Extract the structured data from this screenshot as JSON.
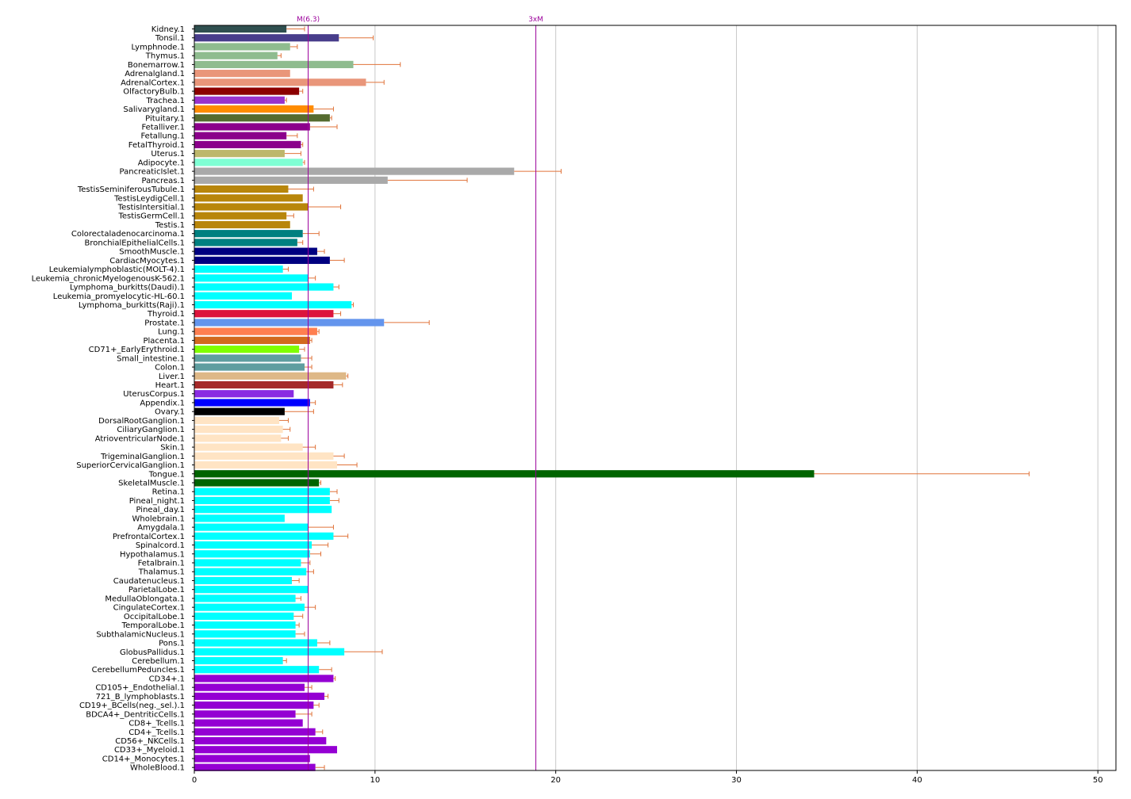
{
  "chart_data": {
    "type": "bar",
    "orientation": "horizontal",
    "title": "",
    "xlabel": "",
    "ylabel": "",
    "xlim": [
      0,
      51
    ],
    "xticks": [
      0,
      10,
      20,
      30,
      40,
      50
    ],
    "grid": "vertical lines at x ticks",
    "error_bar_color": "#e0733a",
    "reference_lines": [
      {
        "label": "M(6.3)",
        "value": 6.3,
        "color": "#9b009b"
      },
      {
        "label": "3xM",
        "value": 18.9,
        "color": "#9b009b"
      }
    ],
    "bars": [
      {
        "label": "Kidney.1",
        "value": 5.1,
        "err": 1.0,
        "color": "#2f4f4f"
      },
      {
        "label": "Tonsil.1",
        "value": 8.0,
        "err": 1.9,
        "color": "#483d8b"
      },
      {
        "label": "Lymphnode.1",
        "value": 5.3,
        "err": 0.4,
        "color": "#8fbc8f"
      },
      {
        "label": "Thymus.1",
        "value": 4.6,
        "err": 0.2,
        "color": "#8fbc8f"
      },
      {
        "label": "Bonemarrow.1",
        "value": 8.8,
        "err": 2.6,
        "color": "#8fbc8f"
      },
      {
        "label": "Adrenalgland.1",
        "value": 5.3,
        "err": 0.0,
        "color": "#e9967a"
      },
      {
        "label": "AdrenalCortex.1",
        "value": 9.5,
        "err": 1.0,
        "color": "#e9967a"
      },
      {
        "label": "OlfactoryBulb.1",
        "value": 5.8,
        "err": 0.2,
        "color": "#8b0000"
      },
      {
        "label": "Trachea.1",
        "value": 5.0,
        "err": 0.1,
        "color": "#9932cc"
      },
      {
        "label": "Salivarygland.1",
        "value": 6.6,
        "err": 1.1,
        "color": "#ff8c00"
      },
      {
        "label": "Pituitary.1",
        "value": 7.5,
        "err": 0.1,
        "color": "#556b2f"
      },
      {
        "label": "Fetalliver.1",
        "value": 6.4,
        "err": 1.5,
        "color": "#8b008b"
      },
      {
        "label": "Fetallung.1",
        "value": 5.1,
        "err": 0.6,
        "color": "#8b008b"
      },
      {
        "label": "FetalThyroid.1",
        "value": 5.9,
        "err": 0.1,
        "color": "#8b008b"
      },
      {
        "label": "Uterus.1",
        "value": 5.0,
        "err": 0.9,
        "color": "#bdb76b"
      },
      {
        "label": "Adipocyte.1",
        "value": 6.0,
        "err": 0.1,
        "color": "#7fffd4"
      },
      {
        "label": "PancreaticIslet.1",
        "value": 17.7,
        "err": 2.6,
        "color": "#a9a9a9"
      },
      {
        "label": "Pancreas.1",
        "value": 10.7,
        "err": 4.4,
        "color": "#a9a9a9"
      },
      {
        "label": "TestisSeminiferousTubule.1",
        "value": 5.2,
        "err": 1.4,
        "color": "#b8860b"
      },
      {
        "label": "TestisLeydigCell.1",
        "value": 6.0,
        "err": 0.0,
        "color": "#b8860b"
      },
      {
        "label": "TestisIntersitial.1",
        "value": 6.3,
        "err": 1.8,
        "color": "#b8860b"
      },
      {
        "label": "TestisGermCell.1",
        "value": 5.1,
        "err": 0.4,
        "color": "#b8860b"
      },
      {
        "label": "Testis.1",
        "value": 5.3,
        "err": 0.0,
        "color": "#b8860b"
      },
      {
        "label": "Colorectaladenocarcinoma.1",
        "value": 6.0,
        "err": 0.9,
        "color": "#008080"
      },
      {
        "label": "BronchialEpithelialCells.1",
        "value": 5.7,
        "err": 0.3,
        "color": "#008080"
      },
      {
        "label": "SmoothMuscle.1",
        "value": 6.8,
        "err": 0.4,
        "color": "#000080"
      },
      {
        "label": "CardiacMyocytes.1",
        "value": 7.5,
        "err": 0.8,
        "color": "#000080"
      },
      {
        "label": "Leukemialymphoblastic(MOLT-4).1",
        "value": 4.9,
        "err": 0.3,
        "color": "#00ffff"
      },
      {
        "label": "Leukemia_chronicMyelogenousK-562.1",
        "value": 6.3,
        "err": 0.4,
        "color": "#00ffff"
      },
      {
        "label": "Lymphoma_burkitts(Daudi).1",
        "value": 7.7,
        "err": 0.3,
        "color": "#00ffff"
      },
      {
        "label": "Leukemia_promyelocytic-HL-60.1",
        "value": 5.4,
        "err": 0.0,
        "color": "#00ffff"
      },
      {
        "label": "Lymphoma_burkitts(Raji).1",
        "value": 8.7,
        "err": 0.1,
        "color": "#00ffff"
      },
      {
        "label": "Thyroid.1",
        "value": 7.7,
        "err": 0.4,
        "color": "#dc143c"
      },
      {
        "label": "Prostate.1",
        "value": 10.5,
        "err": 2.5,
        "color": "#6495ed"
      },
      {
        "label": "Lung.1",
        "value": 6.8,
        "err": 0.1,
        "color": "#ff7f50"
      },
      {
        "label": "Placenta.1",
        "value": 6.4,
        "err": 0.1,
        "color": "#d2691e"
      },
      {
        "label": "CD71+_EarlyErythroid.1",
        "value": 5.8,
        "err": 0.3,
        "color": "#7fff00"
      },
      {
        "label": "Small_intestine.1",
        "value": 5.9,
        "err": 0.6,
        "color": "#5f9ea0"
      },
      {
        "label": "Colon.1",
        "value": 6.1,
        "err": 0.4,
        "color": "#5f9ea0"
      },
      {
        "label": "Liver.1",
        "value": 8.4,
        "err": 0.1,
        "color": "#deb887"
      },
      {
        "label": "Heart.1",
        "value": 7.7,
        "err": 0.5,
        "color": "#a52a2a"
      },
      {
        "label": "UterusCorpus.1",
        "value": 5.5,
        "err": 0.0,
        "color": "#8a2be2"
      },
      {
        "label": "Appendix.1",
        "value": 6.4,
        "err": 0.3,
        "color": "#0000ff"
      },
      {
        "label": "Ovary.1",
        "value": 5.0,
        "err": 1.6,
        "color": "#000000"
      },
      {
        "label": "DorsalRootGanglion.1",
        "value": 4.7,
        "err": 0.5,
        "color": "#ffe4c4"
      },
      {
        "label": "CiliaryGanglion.1",
        "value": 4.9,
        "err": 0.4,
        "color": "#ffe4c4"
      },
      {
        "label": "AtrioventricularNode.1",
        "value": 4.8,
        "err": 0.4,
        "color": "#ffe4c4"
      },
      {
        "label": "Skin.1",
        "value": 6.0,
        "err": 0.7,
        "color": "#ffe4c4"
      },
      {
        "label": "TrigeminalGanglion.1",
        "value": 7.7,
        "err": 0.6,
        "color": "#ffe4c4"
      },
      {
        "label": "SuperiorCervicalGanglion.1",
        "value": 7.9,
        "err": 1.1,
        "color": "#ffe4c4"
      },
      {
        "label": "Tongue.1",
        "value": 34.3,
        "err": 11.9,
        "color": "#006400"
      },
      {
        "label": "SkeletalMuscle.1",
        "value": 6.9,
        "err": 0.1,
        "color": "#006400"
      },
      {
        "label": "Retina.1",
        "value": 7.5,
        "err": 0.4,
        "color": "#00ffff"
      },
      {
        "label": "Pineal_night.1",
        "value": 7.5,
        "err": 0.5,
        "color": "#00ffff"
      },
      {
        "label": "Pineal_day.1",
        "value": 7.6,
        "err": 0.0,
        "color": "#00ffff"
      },
      {
        "label": "Wholebrain.1",
        "value": 5.0,
        "err": 0.0,
        "color": "#00ffff"
      },
      {
        "label": "Amygdala.1",
        "value": 6.3,
        "err": 1.4,
        "color": "#00ffff"
      },
      {
        "label": "PrefrontalCortex.1",
        "value": 7.7,
        "err": 0.8,
        "color": "#00ffff"
      },
      {
        "label": "Spinalcord.1",
        "value": 6.5,
        "err": 0.9,
        "color": "#00ffff"
      },
      {
        "label": "Hypothalamus.1",
        "value": 6.4,
        "err": 0.6,
        "color": "#00ffff"
      },
      {
        "label": "Fetalbrain.1",
        "value": 5.9,
        "err": 0.5,
        "color": "#00ffff"
      },
      {
        "label": "Thalamus.1",
        "value": 6.2,
        "err": 0.4,
        "color": "#00ffff"
      },
      {
        "label": "Caudatenucleus.1",
        "value": 5.4,
        "err": 0.4,
        "color": "#00ffff"
      },
      {
        "label": "ParietalLobe.1",
        "value": 6.3,
        "err": 0.0,
        "color": "#00ffff"
      },
      {
        "label": "MedullaOblongata.1",
        "value": 5.6,
        "err": 0.3,
        "color": "#00ffff"
      },
      {
        "label": "CingulateCortex.1",
        "value": 6.1,
        "err": 0.6,
        "color": "#00ffff"
      },
      {
        "label": "OccipitalLobe.1",
        "value": 5.5,
        "err": 0.5,
        "color": "#00ffff"
      },
      {
        "label": "TemporalLobe.1",
        "value": 5.6,
        "err": 0.2,
        "color": "#00ffff"
      },
      {
        "label": "SubthalamicNucleus.1",
        "value": 5.6,
        "err": 0.5,
        "color": "#00ffff"
      },
      {
        "label": "Pons.1",
        "value": 6.8,
        "err": 0.7,
        "color": "#00ffff"
      },
      {
        "label": "GlobusPallidus.1",
        "value": 8.3,
        "err": 2.1,
        "color": "#00ffff"
      },
      {
        "label": "Cerebellum.1",
        "value": 4.9,
        "err": 0.2,
        "color": "#00ffff"
      },
      {
        "label": "CerebellumPeduncles.1",
        "value": 6.9,
        "err": 0.7,
        "color": "#00ffff"
      },
      {
        "label": "CD34+.1",
        "value": 7.7,
        "err": 0.1,
        "color": "#9400d3"
      },
      {
        "label": "CD105+_Endothelial.1",
        "value": 6.1,
        "err": 0.4,
        "color": "#9400d3"
      },
      {
        "label": "721_B_lymphoblasts.1",
        "value": 7.2,
        "err": 0.2,
        "color": "#9400d3"
      },
      {
        "label": "CD19+_BCells(neg._sel.).1",
        "value": 6.6,
        "err": 0.3,
        "color": "#9400d3"
      },
      {
        "label": "BDCA4+_DentriticCells.1",
        "value": 5.6,
        "err": 0.9,
        "color": "#9400d3"
      },
      {
        "label": "CD8+_Tcells.1",
        "value": 6.0,
        "err": 0.0,
        "color": "#9400d3"
      },
      {
        "label": "CD4+_Tcells.1",
        "value": 6.7,
        "err": 0.4,
        "color": "#9400d3"
      },
      {
        "label": "CD56+_NKCells.1",
        "value": 7.3,
        "err": 0.0,
        "color": "#9400d3"
      },
      {
        "label": "CD33+_Myeloid.1",
        "value": 7.9,
        "err": 0.0,
        "color": "#9400d3"
      },
      {
        "label": "CD14+_Monocytes.1",
        "value": 6.4,
        "err": 0.0,
        "color": "#9400d3"
      },
      {
        "label": "WholeBlood.1",
        "value": 6.7,
        "err": 0.5,
        "color": "#9400d3"
      }
    ]
  }
}
